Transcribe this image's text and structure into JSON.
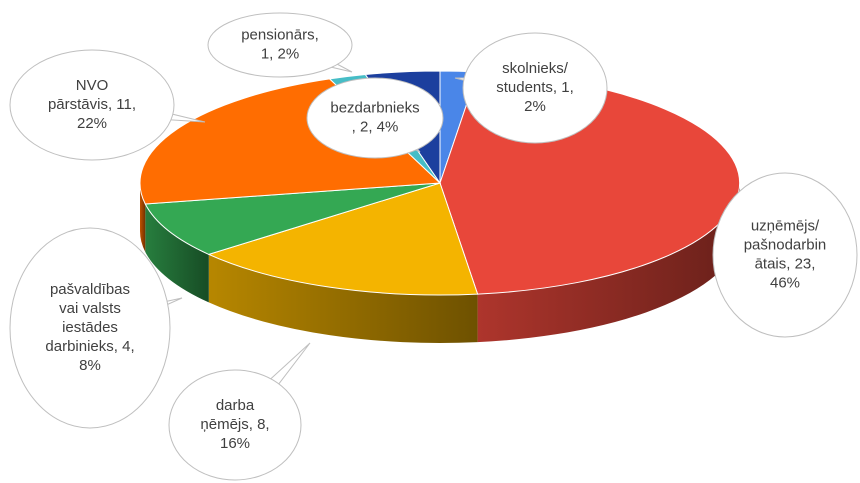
{
  "chart_data": {
    "type": "pie3d",
    "values": [
      1,
      23,
      8,
      4,
      11,
      1,
      2
    ],
    "value_labels": [
      "skolnieks/ students, 1, 2%",
      "uzņēmējs/ pašnodarbinātais, 23, 46%",
      "darba ņēmējs, 8, 16%",
      "pašvaldības vai valsts iestādes darbinieks, 4, 8%",
      "NVO pārstāvis, 11, 22%",
      "pensionārs, 1, 2%",
      "bezdarbnieks, 2, 4%"
    ],
    "colors": [
      "#4a86e8",
      "#e8473a",
      "#f4b400",
      "#34a853",
      "#ff6d01",
      "#46bdc6",
      "#1c3f9e"
    ]
  }
}
